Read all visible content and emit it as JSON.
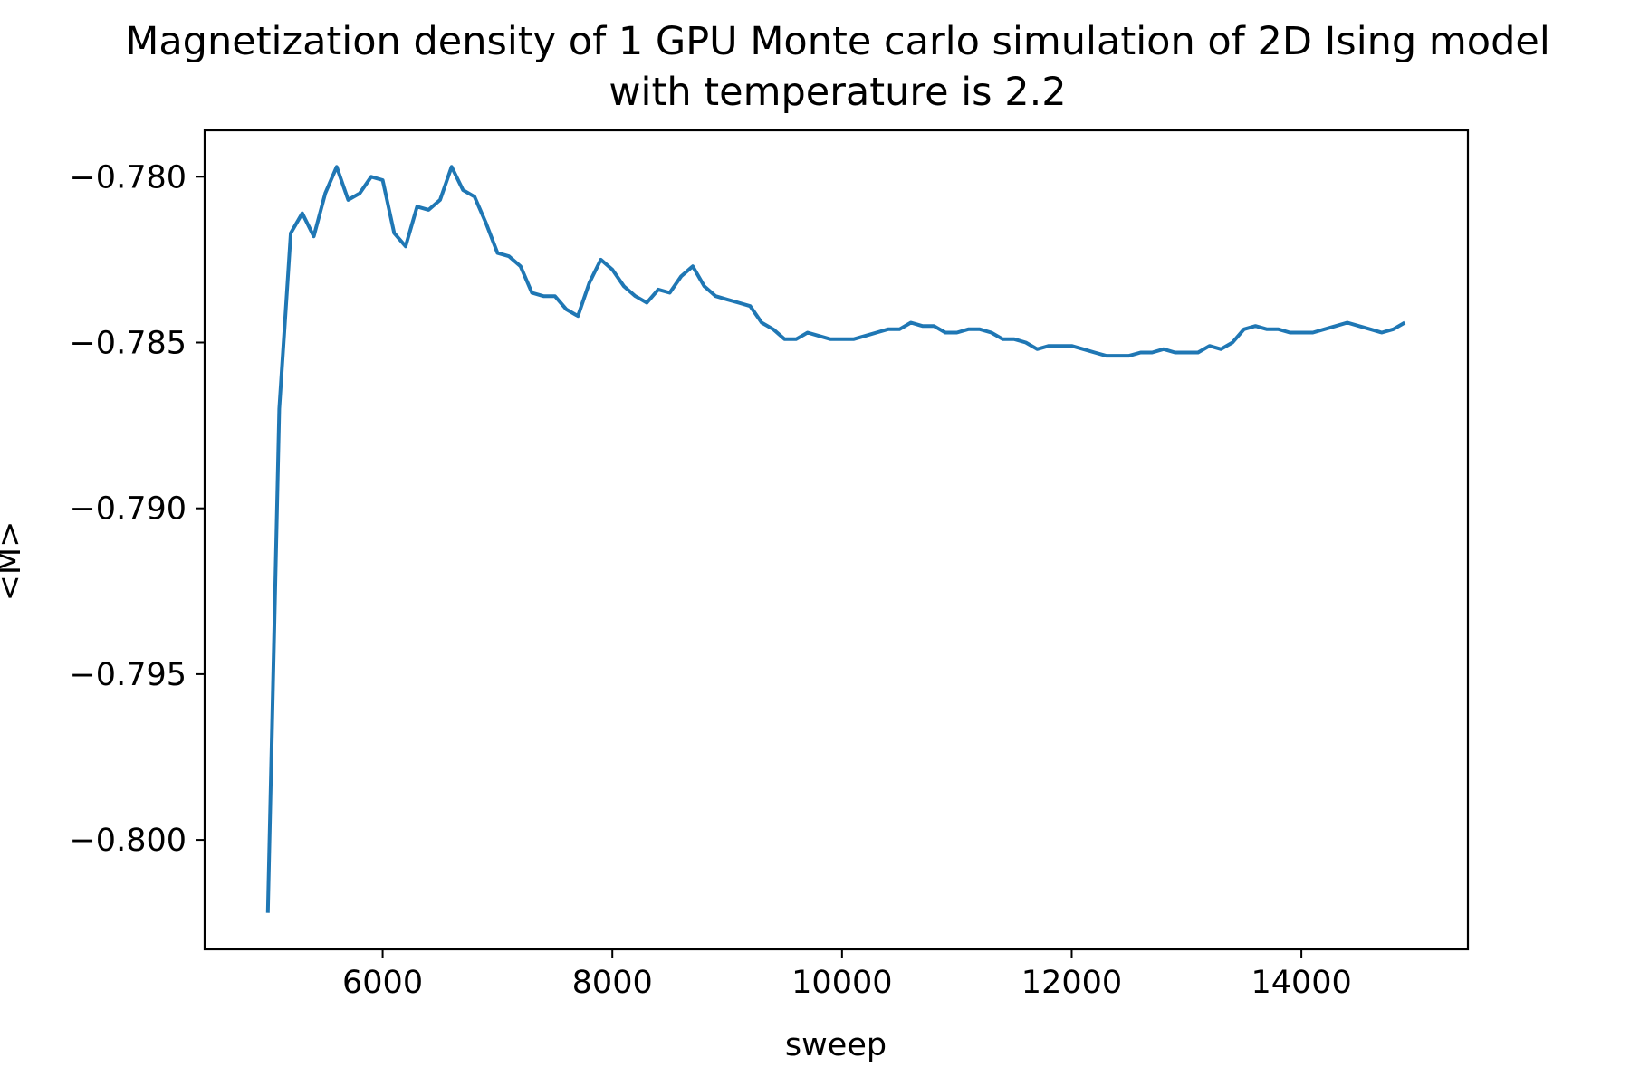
{
  "chart_data": {
    "type": "line",
    "title": "Magnetization density of 1 GPU Monte carlo simulation of 2D Ising model",
    "subtitle": "with temperature is 2.2",
    "xlabel": "sweep",
    "ylabel": "<M>",
    "xlim": [
      4450,
      15450
    ],
    "ylim": [
      -0.8033,
      -0.7786
    ],
    "x_ticks": [
      6000,
      8000,
      10000,
      12000,
      14000
    ],
    "x_tick_labels": [
      "6000",
      "8000",
      "10000",
      "12000",
      "14000"
    ],
    "y_ticks": [
      -0.78,
      -0.785,
      -0.79,
      -0.795,
      -0.8
    ],
    "y_tick_labels": [
      "−0.780",
      "−0.785",
      "−0.790",
      "−0.795",
      "−0.800"
    ],
    "grid": false,
    "legend": "none",
    "series": [
      {
        "color": "#1f77b4",
        "x": [
          5000,
          5100,
          5200,
          5300,
          5400,
          5500,
          5600,
          5700,
          5800,
          5900,
          6000,
          6100,
          6200,
          6300,
          6400,
          6500,
          6600,
          6700,
          6800,
          6900,
          7000,
          7100,
          7200,
          7300,
          7400,
          7500,
          7600,
          7700,
          7800,
          7900,
          8000,
          8100,
          8200,
          8300,
          8400,
          8500,
          8600,
          8700,
          8800,
          8900,
          9000,
          9100,
          9200,
          9300,
          9400,
          9500,
          9600,
          9700,
          9800,
          9900,
          10000,
          10100,
          10200,
          10300,
          10400,
          10500,
          10600,
          10700,
          10800,
          10900,
          11000,
          11100,
          11200,
          11300,
          11400,
          11500,
          11600,
          11700,
          11800,
          11900,
          12000,
          12100,
          12200,
          12300,
          12400,
          12500,
          12600,
          12700,
          12800,
          12900,
          13000,
          13100,
          13200,
          13300,
          13400,
          13500,
          13600,
          13700,
          13800,
          13900,
          14000,
          14100,
          14200,
          14300,
          14400,
          14500,
          14600,
          14700,
          14800,
          14900
        ],
        "values": [
          -0.8022,
          -0.787,
          -0.7817,
          -0.7811,
          -0.7818,
          -0.7805,
          -0.7797,
          -0.7807,
          -0.7805,
          -0.78,
          -0.7801,
          -0.7817,
          -0.7821,
          -0.7809,
          -0.781,
          -0.7807,
          -0.7797,
          -0.7804,
          -0.7806,
          -0.7814,
          -0.7823,
          -0.7824,
          -0.7827,
          -0.7835,
          -0.7836,
          -0.7836,
          -0.784,
          -0.7842,
          -0.7832,
          -0.7825,
          -0.7828,
          -0.7833,
          -0.7836,
          -0.7838,
          -0.7834,
          -0.7835,
          -0.783,
          -0.7827,
          -0.7833,
          -0.7836,
          -0.7837,
          -0.7838,
          -0.7839,
          -0.7844,
          -0.7846,
          -0.7849,
          -0.7849,
          -0.7847,
          -0.7848,
          -0.7849,
          -0.7849,
          -0.7849,
          -0.7848,
          -0.7847,
          -0.7846,
          -0.7846,
          -0.7844,
          -0.7845,
          -0.7845,
          -0.7847,
          -0.7847,
          -0.7846,
          -0.7846,
          -0.7847,
          -0.7849,
          -0.7849,
          -0.785,
          -0.7852,
          -0.7851,
          -0.7851,
          -0.7851,
          -0.7852,
          -0.7853,
          -0.7854,
          -0.7854,
          -0.7854,
          -0.7853,
          -0.7853,
          -0.7852,
          -0.7853,
          -0.7853,
          -0.7853,
          -0.7851,
          -0.7852,
          -0.785,
          -0.7846,
          -0.7845,
          -0.7846,
          -0.7846,
          -0.7847,
          -0.7847,
          -0.7847,
          -0.7846,
          -0.7845,
          -0.7844,
          -0.7845,
          -0.7846,
          -0.7847,
          -0.7846,
          -0.7844
        ]
      }
    ]
  }
}
